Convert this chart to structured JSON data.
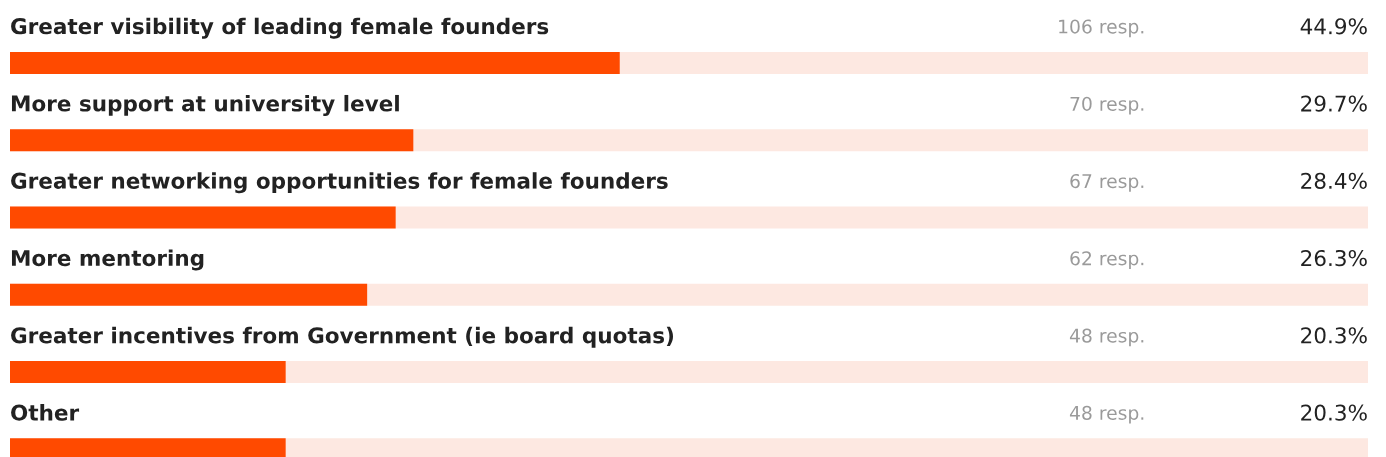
{
  "chart_data": {
    "type": "bar",
    "orientation": "horizontal",
    "categories": [
      "Greater visibility of leading female founders",
      "More support at university level",
      "Greater networking opportunities for female founders",
      "More mentoring",
      "Greater incentives from Government (ie board quotas)",
      "Other"
    ],
    "values": [
      44.9,
      29.7,
      28.4,
      26.3,
      20.3,
      20.3
    ],
    "value_labels": [
      "44.9%",
      "29.7%",
      "28.4%",
      "26.3%",
      "20.3%",
      "20.3%"
    ],
    "color": "#ff4a00",
    "xlim": [
      0,
      100
    ],
    "annotations": [
      "106 resp.",
      "70 resp.",
      "67 resp.",
      "62 resp.",
      "48 resp.",
      "48 resp."
    ]
  }
}
